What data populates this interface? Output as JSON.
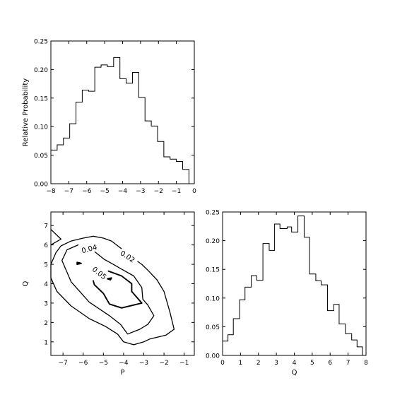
{
  "chart_data": [
    {
      "type": "histogram",
      "panel": "top-left",
      "xlabel": "",
      "ylabel": "Relative Probability",
      "xlim": [
        -8,
        0
      ],
      "ylim": [
        0,
        0.25
      ],
      "xticks": [
        -8,
        -7,
        -6,
        -5,
        -4,
        -3,
        -2,
        -1,
        0
      ],
      "xtick_labels": [
        "−8",
        "−7",
        "−6",
        "−5",
        "−4",
        "−3",
        "−2",
        "−1",
        "0"
      ],
      "yticks": [
        0,
        0.05,
        0.1,
        0.15,
        0.2,
        0.25
      ],
      "ytick_labels": [
        "0.00",
        "0.05",
        "0.10",
        "0.15",
        "0.20",
        "0.25"
      ],
      "bin_edges": [
        -8,
        -7.65,
        -7.3,
        -6.95,
        -6.6,
        -6.25,
        -5.9,
        -5.55,
        -5.2,
        -4.85,
        -4.5,
        -4.15,
        -3.8,
        -3.45,
        -3.1,
        -2.75,
        -2.4,
        -2.05,
        -1.7,
        -1.35,
        -1.0,
        -0.65,
        -0.3,
        0
      ],
      "values": [
        0.059,
        0.068,
        0.08,
        0.105,
        0.143,
        0.164,
        0.162,
        0.204,
        0.208,
        0.205,
        0.221,
        0.184,
        0.176,
        0.195,
        0.151,
        0.11,
        0.101,
        0.074,
        0.047,
        0.043,
        0.039,
        0.025,
        0.0
      ]
    },
    {
      "type": "contour",
      "panel": "bottom-left",
      "xlabel": "P",
      "ylabel": "Q",
      "xlim": [
        -7.6,
        -0.5
      ],
      "ylim": [
        0.3,
        7.7
      ],
      "xticks": [
        -7,
        -6,
        -5,
        -4,
        -3,
        -2,
        -1
      ],
      "xtick_labels": [
        "−7",
        "−6",
        "−5",
        "−4",
        "−3",
        "−2",
        "−1"
      ],
      "yticks": [
        1,
        2,
        3,
        4,
        5,
        6,
        7
      ],
      "ytick_labels": [
        "1",
        "2",
        "3",
        "4",
        "5",
        "6",
        "7"
      ],
      "levels": [
        {
          "level": "0.02",
          "label": "0.02",
          "label_at": [
            -3.8,
            5.4
          ],
          "label_angle": 33,
          "lw": 1.3,
          "paths": [
            [
              [
                -7.6,
                6.8
              ],
              [
                -7.1,
                6.3
              ],
              [
                -7.6,
                6.0
              ]
            ],
            [
              [
                -4.1,
                5.8
              ],
              [
                -4.6,
                6.2
              ],
              [
                -5.0,
                6.35
              ],
              [
                -5.5,
                6.45
              ],
              [
                -6.0,
                6.35
              ],
              [
                -6.6,
                6.2
              ],
              [
                -7.1,
                5.95
              ],
              [
                -7.35,
                5.6
              ],
              [
                -7.6,
                5.0
              ],
              [
                -7.6,
                4.3
              ],
              [
                -7.3,
                3.6
              ],
              [
                -6.6,
                2.85
              ],
              [
                -5.7,
                2.2
              ],
              [
                -4.9,
                1.8
              ],
              [
                -4.3,
                1.4
              ],
              [
                -4.0,
                1.0
              ],
              [
                -3.5,
                0.85
              ],
              [
                -3.0,
                1.0
              ],
              [
                -2.7,
                1.15
              ],
              [
                -1.9,
                1.35
              ],
              [
                -1.5,
                1.65
              ],
              [
                -1.7,
                2.5
              ],
              [
                -2.0,
                3.6
              ],
              [
                -2.35,
                4.2
              ],
              [
                -2.8,
                4.7
              ],
              [
                -3.1,
                5.0
              ],
              [
                -3.3,
                5.15
              ]
            ]
          ]
        },
        {
          "level": "0.04",
          "label": "0.04",
          "label_at": [
            -5.7,
            5.8
          ],
          "label_angle": -15,
          "lw": 1.3,
          "paths": [
            [
              [
                -6.25,
                6.0
              ],
              [
                -6.8,
                5.75
              ],
              [
                -7.05,
                5.2
              ],
              [
                -6.6,
                4.1
              ],
              [
                -5.7,
                3.05
              ],
              [
                -4.7,
                2.35
              ],
              [
                -4.15,
                1.9
              ],
              [
                -3.8,
                1.4
              ],
              [
                -3.2,
                1.65
              ],
              [
                -2.8,
                1.9
              ],
              [
                -2.5,
                2.35
              ],
              [
                -2.8,
                2.9
              ],
              [
                -3.05,
                3.2
              ],
              [
                -3.1,
                3.8
              ],
              [
                -3.5,
                4.4
              ],
              [
                -4.1,
                4.75
              ],
              [
                -4.6,
                5.05
              ],
              [
                -4.95,
                5.25
              ],
              [
                -5.55,
                5.75
              ],
              [
                -5.7,
                6.0
              ]
            ]
          ]
        },
        {
          "level": "0.05",
          "label": "0.05",
          "label_at": [
            -5.2,
            4.55
          ],
          "label_angle": 38,
          "lw": 1.9,
          "paths": [
            [
              [
                -4.75,
                4.65
              ],
              [
                -4.1,
                4.4
              ],
              [
                -3.6,
                4.0
              ],
              [
                -3.6,
                3.6
              ],
              [
                -3.1,
                3.0
              ],
              [
                -3.5,
                2.9
              ],
              [
                -4.1,
                2.75
              ],
              [
                -4.7,
                2.95
              ],
              [
                -5.0,
                3.5
              ],
              [
                -5.45,
                3.95
              ],
              [
                -5.5,
                4.15
              ]
            ],
            [
              [
                -6.3,
                5.0
              ],
              [
                -6.1,
                5.05
              ],
              [
                -6.3,
                5.1
              ],
              [
                -6.3,
                5.0
              ]
            ],
            [
              [
                -4.8,
                4.25
              ],
              [
                -4.6,
                4.3
              ],
              [
                -4.65,
                4.2
              ],
              [
                -4.8,
                4.25
              ]
            ]
          ]
        }
      ]
    },
    {
      "type": "histogram",
      "panel": "bottom-right",
      "xlabel": "Q",
      "ylabel": "",
      "xlim": [
        0,
        8
      ],
      "ylim": [
        0,
        0.25
      ],
      "xticks": [
        0,
        1,
        2,
        3,
        4,
        5,
        6,
        7,
        8
      ],
      "xtick_labels": [
        "0",
        "1",
        "2",
        "3",
        "4",
        "5",
        "6",
        "7",
        "8"
      ],
      "yticks": [
        0,
        0.05,
        0.1,
        0.15,
        0.2,
        0.25
      ],
      "ytick_labels": [
        "0.00",
        "0.05",
        "0.10",
        "0.15",
        "0.20",
        "0.25"
      ],
      "bin_edges": [
        0,
        0.3,
        0.6,
        0.95,
        1.25,
        1.6,
        1.9,
        2.25,
        2.6,
        2.9,
        3.2,
        3.6,
        3.85,
        4.2,
        4.55,
        4.85,
        5.2,
        5.5,
        5.85,
        6.2,
        6.5,
        6.85,
        7.2,
        7.5,
        7.8,
        8.0
      ],
      "values": [
        0.025,
        0.036,
        0.064,
        0.097,
        0.119,
        0.139,
        0.131,
        0.195,
        0.183,
        0.229,
        0.221,
        0.224,
        0.215,
        0.243,
        0.206,
        0.142,
        0.13,
        0.123,
        0.078,
        0.089,
        0.055,
        0.038,
        0.027,
        0.015,
        0.0
      ]
    }
  ]
}
